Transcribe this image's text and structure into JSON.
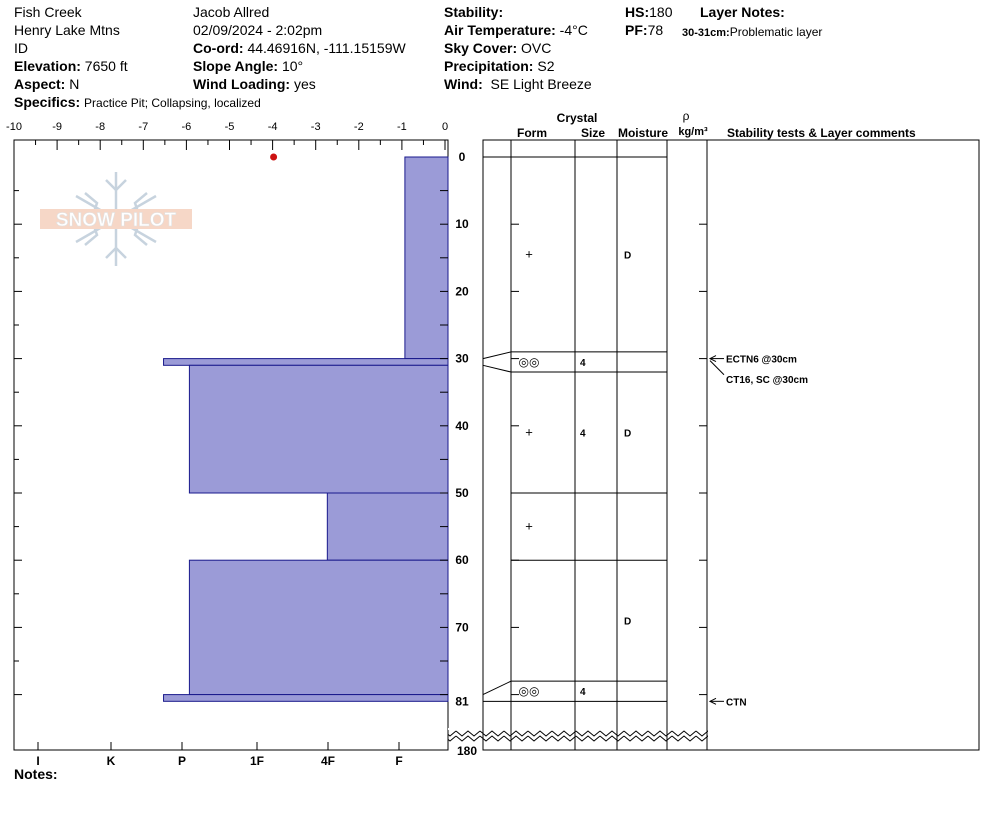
{
  "header": {
    "location": "Fish Creek",
    "range": "Henry Lake Mtns",
    "state": "ID",
    "elevation_label": "Elevation:",
    "elevation": "7650 ft",
    "aspect_label": "Aspect:",
    "aspect": "N",
    "specifics_label": "Specifics:",
    "specifics": "Practice Pit; Collapsing, localized",
    "observer": "Jacob Allred",
    "datetime": "02/09/2024 - 2:02pm",
    "coord_label": "Co-ord:",
    "coord": "44.46916N, -111.15159W",
    "slope_label": "Slope Angle:",
    "slope": "10°",
    "wind_loading_label": "Wind Loading:",
    "wind_loading": "yes",
    "stability_label": "Stability:",
    "stability": "",
    "air_temp_label": "Air Temperature:",
    "air_temp": "-4°C",
    "sky_label": "Sky Cover:",
    "sky": "OVC",
    "precip_label": "Precipitation:",
    "precip": "S2",
    "wind_label": "Wind:",
    "wind": "SE Light Breeze",
    "hs_label": "HS:",
    "hs": "180",
    "pf_label": "PF:",
    "pf": "78",
    "layer_notes_label": "Layer Notes:",
    "layer_note_depth": "30-31cm:",
    "layer_note_text": "Problematic layer",
    "notes_label": "Notes:"
  },
  "chart_data": {
    "type": "bar",
    "title": "",
    "x_axis_top": {
      "ticks": [
        -10,
        -9,
        -8,
        -7,
        -6,
        -5,
        -4,
        -3,
        -2,
        -1,
        0
      ],
      "range": [
        -10,
        0
      ]
    },
    "x_axis_bottom": {
      "labels": [
        "I",
        "K",
        "P",
        "1F",
        "4F",
        "F"
      ]
    },
    "depth_axis": {
      "ticks": [
        0,
        10,
        20,
        30,
        40,
        50,
        60,
        70,
        81
      ],
      "bottom_label": "180",
      "range": [
        0,
        81
      ]
    },
    "temperature_points": [
      {
        "depth": 0,
        "temp": -4
      }
    ],
    "hardness_layers": [
      {
        "top": 0,
        "bottom": 30,
        "hardness": "F",
        "value": 1
      },
      {
        "top": 30,
        "bottom": 31,
        "hardness": "P-",
        "value": 6.6
      },
      {
        "top": 31,
        "bottom": 50,
        "hardness": "1F+",
        "value": 6
      },
      {
        "top": 50,
        "bottom": 60,
        "hardness": "4F",
        "value": 2.8
      },
      {
        "top": 60,
        "bottom": 80,
        "hardness": "1F+",
        "value": 6
      },
      {
        "top": 80,
        "bottom": 81,
        "hardness": "P-",
        "value": 6.6
      }
    ],
    "table_headers": {
      "crystal": "Crystal",
      "form": "Form",
      "size": "Size",
      "moisture": "Moisture",
      "rho": "ρ",
      "density_unit": "kg/m³",
      "comments": "Stability tests & Layer comments"
    },
    "crystal_layers": [
      {
        "top": 0,
        "bottom": 29,
        "form": "+",
        "size": "",
        "moisture": "D"
      },
      {
        "top": 29,
        "bottom": 32,
        "form": "◎◎",
        "size": "4",
        "moisture": ""
      },
      {
        "top": 32,
        "bottom": 50,
        "form": "+",
        "size": "4",
        "moisture": "D"
      },
      {
        "top": 50,
        "bottom": 60,
        "form": "+",
        "size": "",
        "moisture": ""
      },
      {
        "top": 60,
        "bottom": 78,
        "form": "",
        "size": "",
        "moisture": "D"
      },
      {
        "top": 78,
        "bottom": 81,
        "form": "◎◎",
        "size": "4",
        "moisture": ""
      }
    ],
    "stability_tests": [
      {
        "depth": 30,
        "label": "ECTN6 @30cm"
      },
      {
        "depth": 31,
        "label": "CT16, SC @30cm"
      },
      {
        "depth": 81,
        "label": "CTN"
      }
    ]
  },
  "logo": {
    "text": "SNOW PILOT"
  }
}
